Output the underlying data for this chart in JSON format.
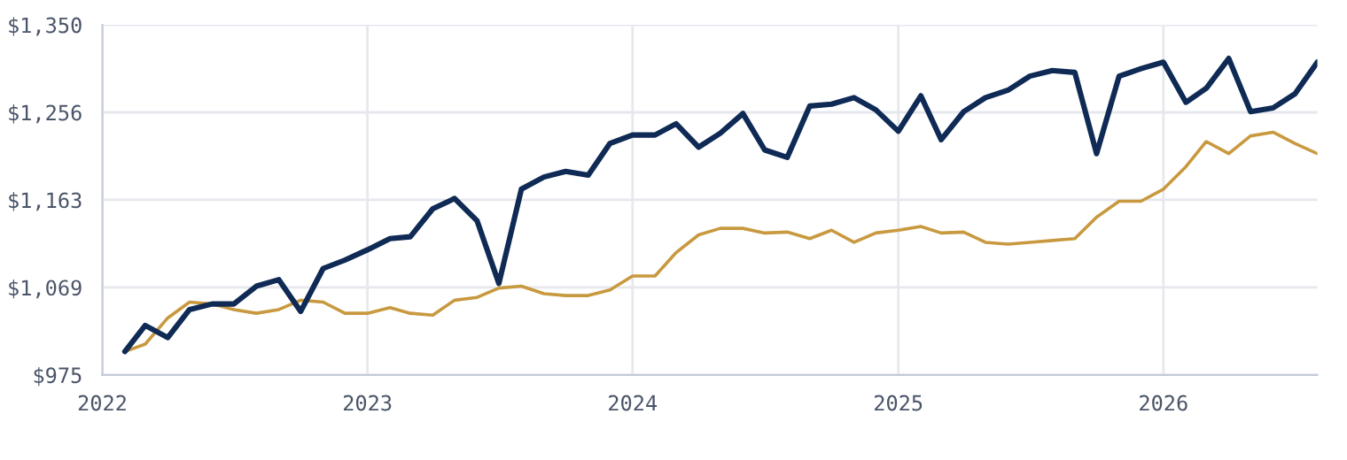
{
  "chart_data": {
    "type": "line",
    "x": [
      "2022-02",
      "2022-03",
      "2022-04",
      "2022-05",
      "2022-06",
      "2022-07",
      "2022-08",
      "2022-09",
      "2022-10",
      "2022-11",
      "2022-12",
      "2023-01",
      "2023-02",
      "2023-03",
      "2023-04",
      "2023-05",
      "2023-06",
      "2023-07",
      "2023-08",
      "2023-09",
      "2023-10",
      "2023-11",
      "2023-12",
      "2024-01",
      "2024-02",
      "2024-03",
      "2024-04",
      "2024-05",
      "2024-06",
      "2024-07",
      "2024-08",
      "2024-09",
      "2024-10",
      "2024-11",
      "2024-12",
      "2025-01",
      "2025-02",
      "2025-03",
      "2025-04",
      "2025-05",
      "2025-06",
      "2025-07",
      "2025-08",
      "2025-09",
      "2025-10",
      "2025-11",
      "2025-12",
      "2026-01",
      "2026-02",
      "2026-03",
      "2026-04",
      "2026-05",
      "2026-06",
      "2026-07",
      "2026-08"
    ],
    "series": [
      {
        "color": "#0e2a55",
        "values": [
          1000,
          1028,
          1015,
          1045,
          1051,
          1051,
          1070,
          1077,
          1043,
          1089,
          1098,
          1109,
          1121,
          1123,
          1153,
          1164,
          1140,
          1073,
          1174,
          1187,
          1193,
          1189,
          1223,
          1232,
          1232,
          1244,
          1219,
          1234,
          1255,
          1216,
          1208,
          1263,
          1265,
          1272,
          1259,
          1236,
          1274,
          1227,
          1257,
          1272,
          1280,
          1295,
          1301,
          1299,
          1212,
          1295,
          1303,
          1310,
          1267,
          1282,
          1314,
          1257,
          1261,
          1276,
          1310
        ]
      },
      {
        "color": "#c8993f",
        "values": [
          1000,
          1008,
          1036,
          1053,
          1051,
          1045,
          1041,
          1045,
          1055,
          1053,
          1041,
          1041,
          1047,
          1041,
          1039,
          1055,
          1058,
          1068,
          1070,
          1062,
          1060,
          1060,
          1066,
          1081,
          1081,
          1106,
          1125,
          1132,
          1132,
          1127,
          1128,
          1121,
          1130,
          1117,
          1127,
          1130,
          1134,
          1127,
          1128,
          1117,
          1115,
          1117,
          1119,
          1121,
          1144,
          1161,
          1161,
          1174,
          1198,
          1225,
          1212,
          1231,
          1235,
          1223,
          1212
        ]
      }
    ],
    "xlim": [
      "2022-01",
      "2026-08"
    ],
    "xticks": [
      "2022",
      "2023",
      "2024",
      "2025",
      "2026"
    ],
    "ylim": [
      975,
      1350
    ],
    "yticks": [
      {
        "value": 975,
        "label": "$975"
      },
      {
        "value": 1068.75,
        "label": "$1,069"
      },
      {
        "value": 1162.5,
        "label": "$1,163"
      },
      {
        "value": 1256.25,
        "label": "$1,256"
      },
      {
        "value": 1350,
        "label": "$1,350"
      }
    ],
    "grid": true
  }
}
